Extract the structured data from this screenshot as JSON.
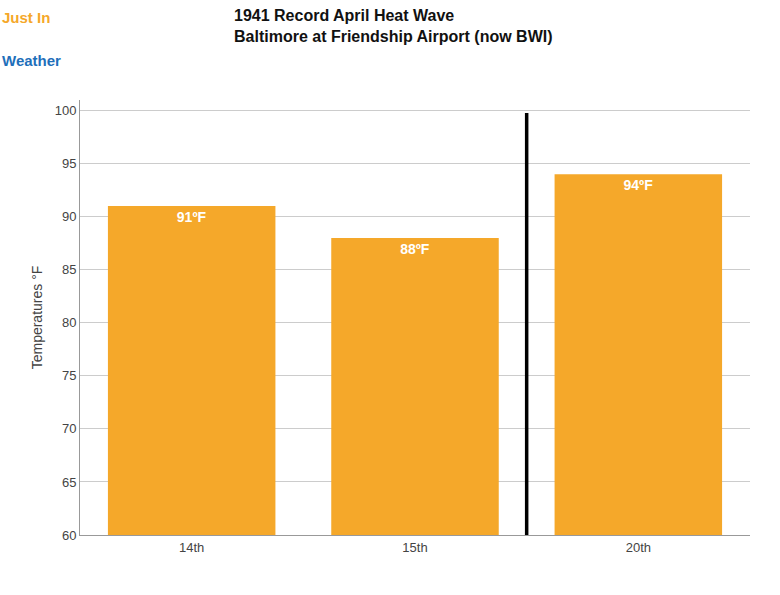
{
  "chart_data": {
    "type": "bar",
    "title": "1941 Record April Heat Wave",
    "subtitle": "Baltimore at Friendship Airport (now BWI)",
    "categories": [
      "14th",
      "15th",
      "20th"
    ],
    "values": [
      91,
      88,
      94
    ],
    "value_labels": [
      "91ºF",
      "88ºF",
      "94ºF"
    ],
    "data_labels": true,
    "color": "#F5A82A",
    "ylabel": "Temperatures °F",
    "ylim": [
      60,
      101
    ],
    "yticks": [
      60,
      65,
      70,
      75,
      80,
      85,
      90,
      95,
      100
    ],
    "grid": true,
    "annotations": [
      "Just In",
      "Weather"
    ]
  }
}
